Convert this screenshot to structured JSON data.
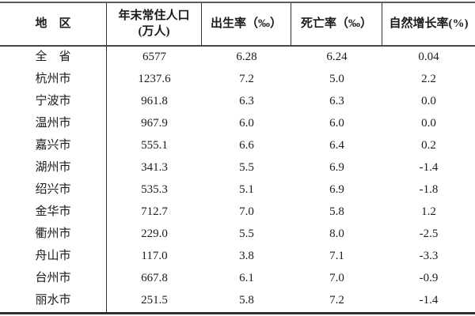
{
  "table": {
    "columns": [
      {
        "label": "地　区"
      },
      {
        "label": "年末常住人口\n(万人)"
      },
      {
        "label": "出生率（‰）"
      },
      {
        "label": "死亡率（‰）"
      },
      {
        "label": "自然增长率(%)"
      }
    ],
    "rows": [
      [
        "全　省",
        "6577",
        "6.28",
        "6.24",
        "0.04"
      ],
      [
        "杭州市",
        "1237.6",
        "7.2",
        "5.0",
        "2.2"
      ],
      [
        "宁波市",
        "961.8",
        "6.3",
        "6.3",
        "0.0"
      ],
      [
        "温州市",
        "967.9",
        "6.0",
        "6.0",
        "0.0"
      ],
      [
        "嘉兴市",
        "555.1",
        "6.6",
        "6.4",
        "0.2"
      ],
      [
        "湖州市",
        "341.3",
        "5.5",
        "6.9",
        "-1.4"
      ],
      [
        "绍兴市",
        "535.3",
        "5.1",
        "6.9",
        "-1.8"
      ],
      [
        "金华市",
        "712.7",
        "7.0",
        "5.8",
        "1.2"
      ],
      [
        "衢州市",
        "229.0",
        "5.5",
        "8.0",
        "-2.5"
      ],
      [
        "舟山市",
        "117.0",
        "3.8",
        "7.1",
        "-3.3"
      ],
      [
        "台州市",
        "667.8",
        "6.1",
        "7.0",
        "-0.9"
      ],
      [
        "丽水市",
        "251.5",
        "5.8",
        "7.2",
        "-1.4"
      ]
    ]
  },
  "colors": {
    "text": "#1b1b1b",
    "rule_thick": "#2e2e2e",
    "rule_thin": "#2f2f2f",
    "background": "#ffffff"
  }
}
